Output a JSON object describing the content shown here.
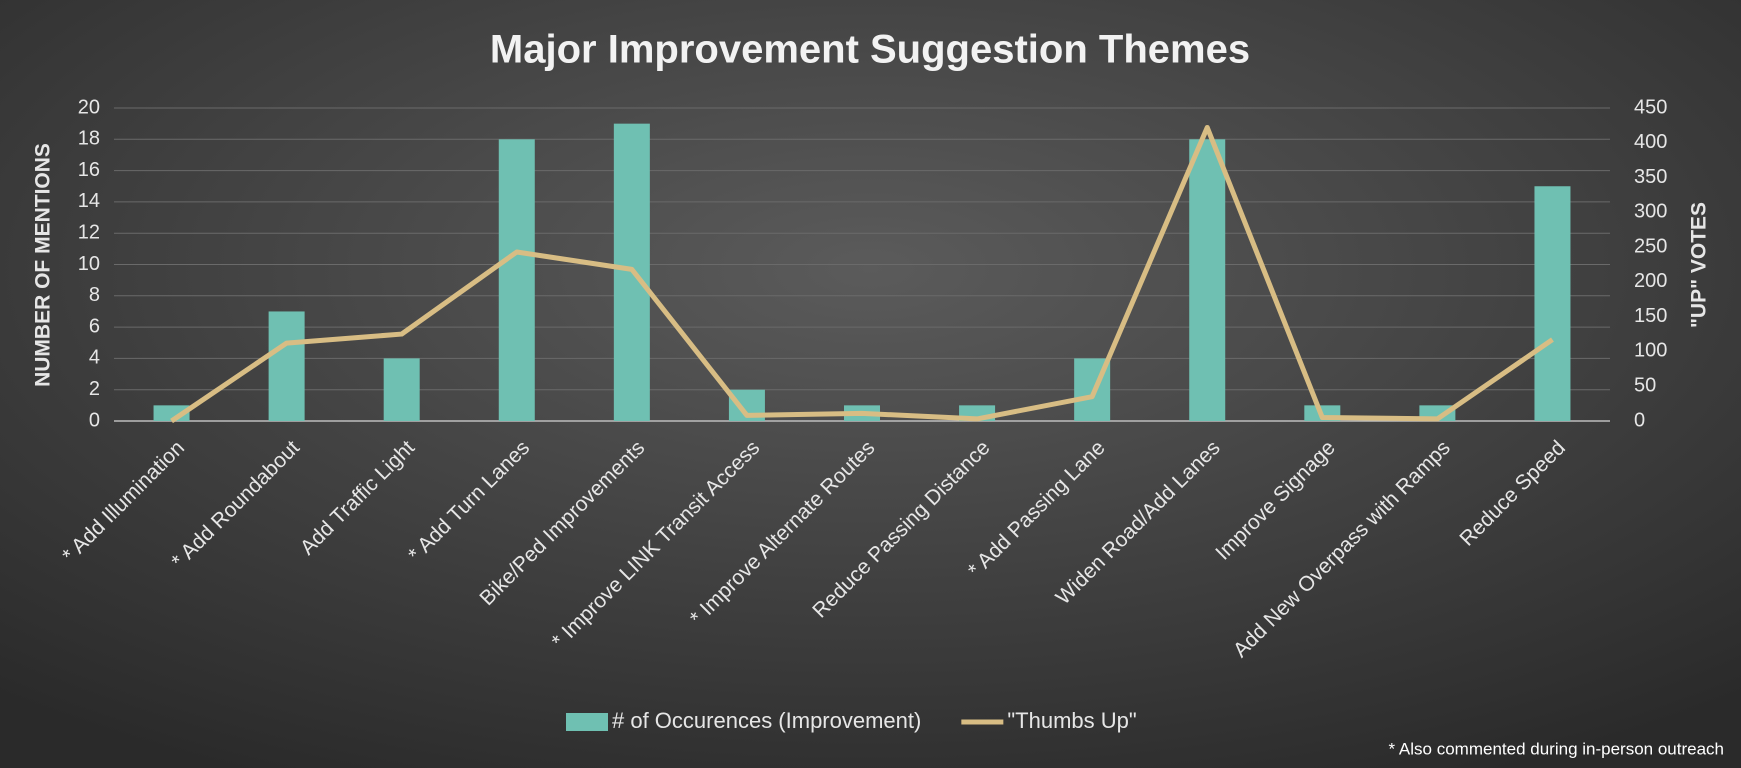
{
  "chart_data": {
    "type": "bar-line",
    "title": "Major Improvement Suggestion Themes",
    "y_label": "NUMBER OF MENTIONS",
    "y2_label": "\"UP\" VOTES",
    "annotation": "* Also commented during in-person outreach",
    "categories": [
      "* Add Illumination",
      "* Add Roundabout",
      "Add Traffic Light",
      "* Add Turn Lanes",
      "Bike/Ped Improvements",
      "* Improve LINK Transit Access",
      "* Improve Alternate Routes",
      "Reduce Passing Distance",
      "* Add Passing Lane",
      "Widen Road/Add Lanes",
      "Improve Signage",
      "Add New Overpass with Ramps",
      "Reduce Speed"
    ],
    "series": [
      {
        "name": "# of Occurences (Improvement)",
        "type": "bar",
        "color": "#6fc0b2",
        "values": [
          1,
          7,
          4,
          18,
          19,
          2,
          1,
          1,
          4,
          18,
          1,
          1,
          15
        ]
      },
      {
        "name": "\"Thumbs Up\"",
        "type": "line",
        "axis": "y2",
        "color": "#d8bd84",
        "values": [
          0,
          112,
          125,
          243,
          218,
          8,
          11,
          3,
          35,
          422,
          5,
          3,
          117
        ]
      }
    ],
    "ylim": [
      0,
      20
    ],
    "yticks": [
      0,
      2,
      4,
      6,
      8,
      10,
      12,
      14,
      16,
      18,
      20
    ],
    "y2lim": [
      0,
      450
    ],
    "y2ticks": [
      0,
      50,
      100,
      150,
      200,
      250,
      300,
      350,
      400,
      450
    ],
    "grid": true,
    "legend": "bottom"
  }
}
